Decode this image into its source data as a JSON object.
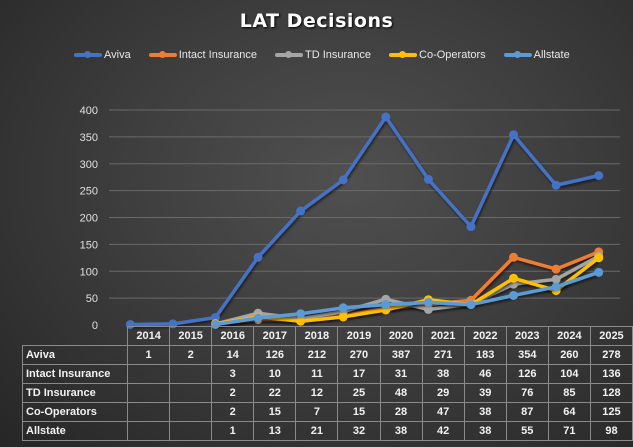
{
  "chart_data": {
    "type": "line",
    "title": "LAT Decisions",
    "xlabel": "",
    "ylabel": "",
    "categories": [
      "2014",
      "2015",
      "2016",
      "2017",
      "2018",
      "2019",
      "2020",
      "2021",
      "2022",
      "2023",
      "2024",
      "2025"
    ],
    "ylim": [
      0,
      400
    ],
    "yticks": [
      0,
      50,
      100,
      150,
      200,
      250,
      300,
      350,
      400
    ],
    "grid": true,
    "legend_position": "top",
    "data_table": true,
    "series": [
      {
        "name": "Aviva",
        "color": "#4472c4",
        "values": [
          1,
          2,
          14,
          126,
          212,
          270,
          387,
          271,
          183,
          354,
          260,
          278
        ]
      },
      {
        "name": "Intact Insurance",
        "color": "#ed7d31",
        "values": [
          null,
          null,
          3,
          10,
          11,
          17,
          31,
          38,
          46,
          126,
          104,
          136
        ]
      },
      {
        "name": "TD Insurance",
        "color": "#a5a5a5",
        "values": [
          null,
          null,
          2,
          22,
          12,
          25,
          48,
          29,
          39,
          76,
          85,
          128
        ]
      },
      {
        "name": "Co-Operators",
        "color": "#ffc000",
        "values": [
          null,
          null,
          2,
          15,
          7,
          15,
          28,
          47,
          38,
          87,
          64,
          125
        ]
      },
      {
        "name": "Allstate",
        "color": "#5b9bd5",
        "values": [
          null,
          null,
          1,
          13,
          21,
          32,
          38,
          42,
          38,
          55,
          71,
          98
        ]
      }
    ]
  }
}
